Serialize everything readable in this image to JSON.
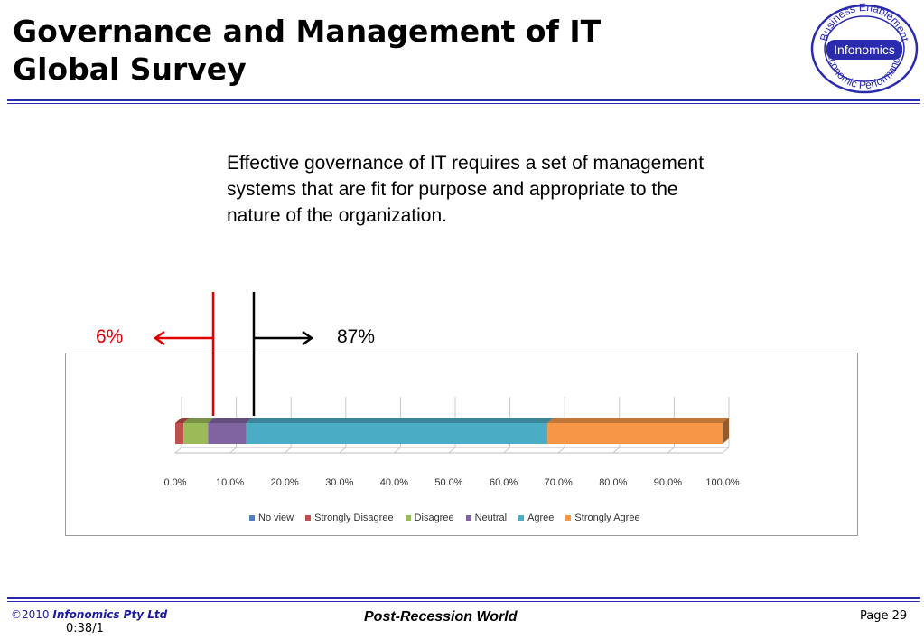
{
  "slide": {
    "title_line1": "Governance and Management of IT",
    "title_line2": "Global Survey",
    "intro_text": "Effective governance of IT requires a set of management systems that are fit for purpose and appropriate to the nature of the organization."
  },
  "logo": {
    "top_text": "Business Enablement",
    "center_text": "Infonomics",
    "bottom_text": "Economic Performance",
    "color": "#2b2bb0"
  },
  "callouts": {
    "left_value": "6%",
    "right_value": "87%",
    "left_color": "#e00000",
    "right_color": "#000000"
  },
  "chart_data": {
    "type": "bar",
    "orientation": "horizontal-stacked-100",
    "categories": [
      ""
    ],
    "series": [
      {
        "name": "No view",
        "values": [
          0.0
        ],
        "color": "#4f81bd"
      },
      {
        "name": "Strongly Disagree",
        "values": [
          1.5
        ],
        "color": "#c0504d"
      },
      {
        "name": "Disagree",
        "values": [
          4.5
        ],
        "color": "#9bbb59"
      },
      {
        "name": "Neutral",
        "values": [
          7.0
        ],
        "color": "#8064a2"
      },
      {
        "name": "Agree",
        "values": [
          55.0
        ],
        "color": "#4bacc6"
      },
      {
        "name": "Strongly Agree",
        "values": [
          32.0
        ],
        "color": "#f79646"
      }
    ],
    "x_ticks": [
      "0.0%",
      "10.0%",
      "20.0%",
      "30.0%",
      "40.0%",
      "50.0%",
      "60.0%",
      "70.0%",
      "80.0%",
      "90.0%",
      "100.0%"
    ],
    "xlim": [
      0,
      100
    ],
    "grid": true,
    "legend_position": "bottom",
    "style": "3d"
  },
  "footer": {
    "copyright_prefix": "©2010",
    "company": "Infonomics Pty Ltd",
    "time": "0:38/1",
    "center_text": "Post-Recession World",
    "page_label": "Page 29"
  }
}
